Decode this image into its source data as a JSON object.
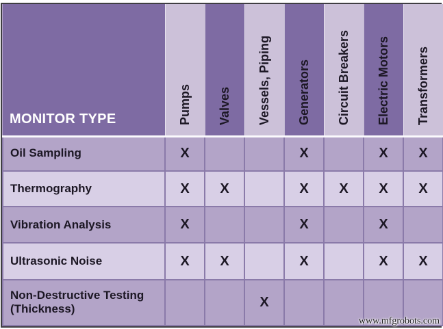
{
  "colors": {
    "page_bg": "#FFFFFF",
    "header_bg": "#7E6BA3",
    "col_light": "#CCC1D9",
    "row_odd": "#B3A4C8",
    "row_even": "#D8CFE6",
    "grid_line": "#8A7AA9",
    "outer_border": "#3F3E42",
    "separator": "#FBFAFD",
    "text_dark": "#1C1724",
    "corner_text": "#FFFFFF"
  },
  "table": {
    "corner_label": "MONITOR TYPE",
    "columns": [
      "Pumps",
      "Valves",
      "Vessels, Piping",
      "Generators",
      "Circuit Breakers",
      "Electric Motors",
      "Transformers"
    ],
    "rows": [
      {
        "label": "Oil Sampling",
        "marks": [
          "X",
          "",
          "",
          "X",
          "",
          "X",
          "X"
        ]
      },
      {
        "label": "Thermography",
        "marks": [
          "X",
          "X",
          "",
          "X",
          "X",
          "X",
          "X"
        ]
      },
      {
        "label": "Vibration Analysis",
        "marks": [
          "X",
          "",
          "",
          "X",
          "",
          "X",
          ""
        ]
      },
      {
        "label": "Ultrasonic Noise",
        "marks": [
          "X",
          "X",
          "",
          "X",
          "",
          "X",
          "X"
        ]
      },
      {
        "label": "Non-Destructive Testing (Thickness)",
        "marks": [
          "",
          "",
          "X",
          "",
          "",
          "",
          ""
        ]
      }
    ]
  },
  "watermark": "www.mfgrobots.com"
}
